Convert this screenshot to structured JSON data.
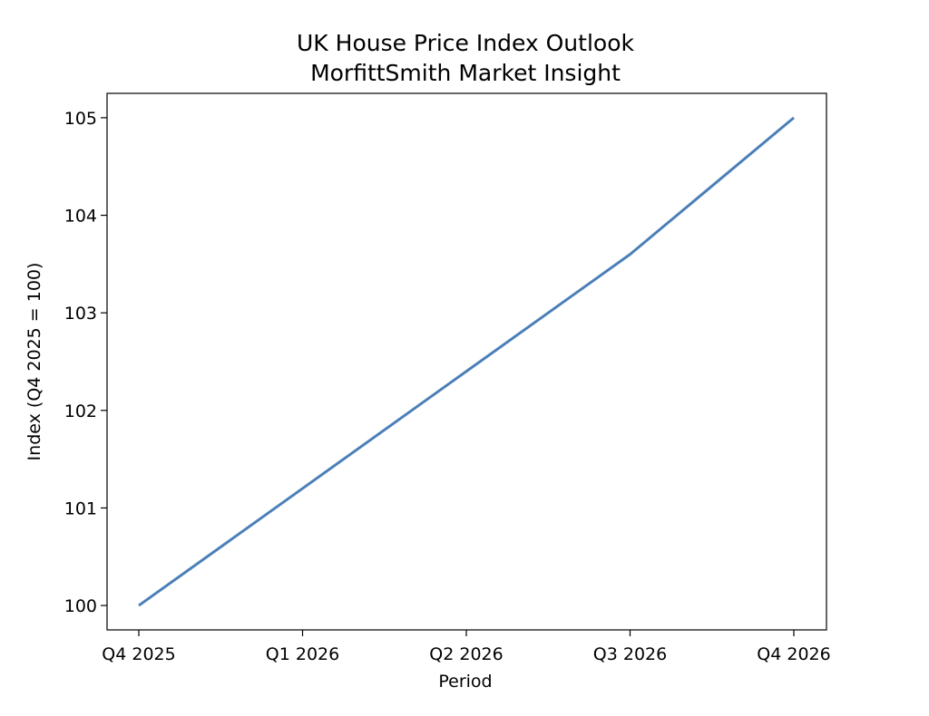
{
  "chart_data": {
    "type": "line",
    "title": "UK House Price Index Outlook",
    "subtitle": "MorfittSmith Market Insight",
    "xlabel": "Period",
    "ylabel": "Index (Q4 2025 = 100)",
    "categories": [
      "Q4 2025",
      "Q1 2026",
      "Q2 2026",
      "Q3 2026",
      "Q4 2026"
    ],
    "series": [
      {
        "values": [
          100.0,
          101.2,
          102.4,
          103.6,
          105.0
        ],
        "color": "#4a7fb8"
      }
    ],
    "ylim": [
      99.75,
      105.25
    ],
    "yticks": [
      100,
      101,
      102,
      103,
      104,
      105
    ],
    "grid": false,
    "legend": "none"
  }
}
